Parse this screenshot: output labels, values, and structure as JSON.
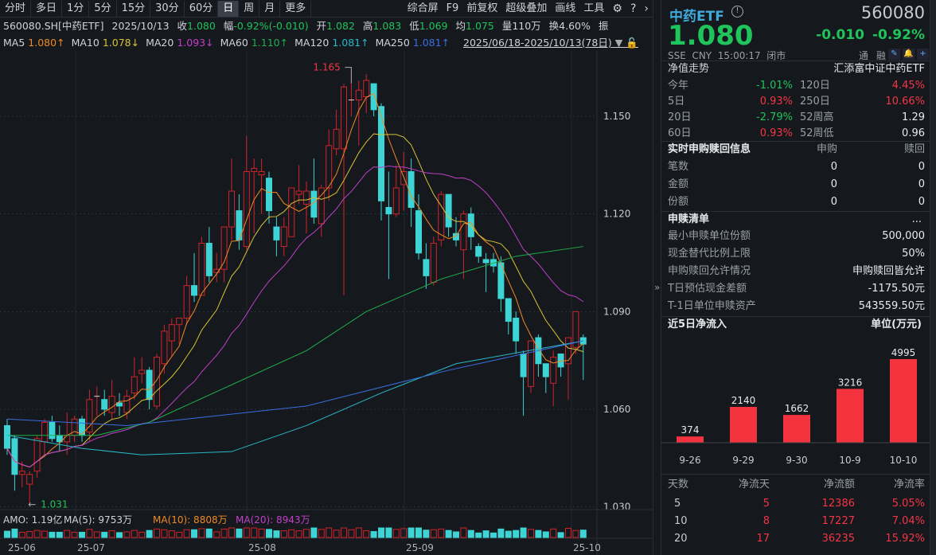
{
  "toolbar": {
    "tabs": [
      "分时",
      "多日",
      "1分",
      "5分",
      "15分",
      "30分",
      "60分",
      "日",
      "周",
      "月",
      "更多"
    ],
    "active": "日",
    "tools": [
      "综合屏",
      "F9",
      "前复权",
      "超级叠加",
      "画线",
      "工具"
    ]
  },
  "quote": {
    "code": "560080.SH[中药ETF]",
    "date": "2025/10/13",
    "close_label": "收",
    "close": "1.080",
    "amp_label": "幅",
    "change": "-0.92%(-0.010)",
    "open_label": "开",
    "open": "1.082",
    "high_label": "高",
    "high": "1.083",
    "low_label": "低",
    "low": "1.069",
    "avg_label": "均",
    "avg": "1.075",
    "vol_label": "量",
    "vol": "110万",
    "turn_label": "换",
    "turn": "4.60%",
    "extra": "振"
  },
  "ma": [
    {
      "label": "MA5",
      "value": "1.080↑",
      "color": "#f08a24"
    },
    {
      "label": "MA10",
      "value": "1.078↓",
      "color": "#d8c234"
    },
    {
      "label": "MA20",
      "value": "1.093↓",
      "color": "#c040c8"
    },
    {
      "label": "MA60",
      "value": "1.110↑",
      "color": "#1fae4a"
    },
    {
      "label": "MA120",
      "value": "1.081↑",
      "color": "#2ab8c8"
    },
    {
      "label": "MA250",
      "value": "1.081↑",
      "color": "#3a6ee0"
    }
  ],
  "range": "2025/06/18-2025/10/13(78日)",
  "chart": {
    "yticks": [
      "1.150",
      "1.120",
      "1.090",
      "1.060",
      "1.030"
    ],
    "xticks": [
      "25-06",
      "25-07",
      "25-08",
      "25-09",
      "25-10"
    ],
    "high_mark": "1.165",
    "low_mark": "1.031",
    "up_color": "#d0242a",
    "down_color": "#3cd4d4",
    "candles": [
      [
        1.055,
        1.057,
        1.046,
        1.048
      ],
      [
        1.051,
        1.052,
        1.035,
        1.04
      ],
      [
        1.04,
        1.044,
        1.036,
        1.041
      ],
      [
        1.037,
        1.041,
        1.031,
        1.04
      ],
      [
        1.041,
        1.052,
        1.039,
        1.051
      ],
      [
        1.05,
        1.057,
        1.046,
        1.056
      ],
      [
        1.056,
        1.058,
        1.05,
        1.051
      ],
      [
        1.052,
        1.055,
        1.047,
        1.05
      ],
      [
        1.05,
        1.059,
        1.046,
        1.052
      ],
      [
        1.052,
        1.058,
        1.05,
        1.057
      ],
      [
        1.057,
        1.058,
        1.05,
        1.052
      ],
      [
        1.053,
        1.066,
        1.05,
        1.063
      ],
      [
        1.064,
        1.067,
        1.058,
        1.064
      ],
      [
        1.063,
        1.066,
        1.058,
        1.06
      ],
      [
        1.059,
        1.069,
        1.057,
        1.064
      ],
      [
        1.062,
        1.065,
        1.058,
        1.061
      ],
      [
        1.059,
        1.066,
        1.057,
        1.064
      ],
      [
        1.065,
        1.076,
        1.063,
        1.07
      ],
      [
        1.071,
        1.076,
        1.068,
        1.072
      ],
      [
        1.072,
        1.073,
        1.06,
        1.063
      ],
      [
        1.061,
        1.077,
        1.06,
        1.076
      ],
      [
        1.074,
        1.086,
        1.071,
        1.084
      ],
      [
        1.081,
        1.088,
        1.076,
        1.086
      ],
      [
        1.086,
        1.088,
        1.08,
        1.088
      ],
      [
        1.088,
        1.101,
        1.086,
        1.098
      ],
      [
        1.098,
        1.108,
        1.093,
        1.095
      ],
      [
        1.095,
        1.113,
        1.095,
        1.111
      ],
      [
        1.111,
        1.116,
        1.099,
        1.101
      ],
      [
        1.102,
        1.108,
        1.099,
        1.103
      ],
      [
        1.103,
        1.116,
        1.099,
        1.116
      ],
      [
        1.116,
        1.137,
        1.112,
        1.127
      ],
      [
        1.121,
        1.126,
        1.109,
        1.112
      ],
      [
        1.11,
        1.144,
        1.109,
        1.133
      ],
      [
        1.133,
        1.137,
        1.114,
        1.134
      ],
      [
        1.132,
        1.137,
        1.12,
        1.133
      ],
      [
        1.131,
        1.133,
        1.117,
        1.121
      ],
      [
        1.116,
        1.119,
        1.107,
        1.112
      ],
      [
        1.11,
        1.119,
        1.107,
        1.116
      ],
      [
        1.113,
        1.128,
        1.113,
        1.128
      ],
      [
        1.126,
        1.135,
        1.123,
        1.127
      ],
      [
        1.123,
        1.13,
        1.114,
        1.127
      ],
      [
        1.127,
        1.137,
        1.117,
        1.119
      ],
      [
        1.117,
        1.129,
        1.113,
        1.128
      ],
      [
        1.128,
        1.146,
        1.124,
        1.141
      ],
      [
        1.14,
        1.152,
        1.138,
        1.146
      ],
      [
        1.14,
        1.16,
        1.095,
        1.159
      ],
      [
        1.155,
        1.165,
        1.15,
        1.155
      ],
      [
        1.155,
        1.161,
        1.141,
        1.158
      ],
      [
        1.156,
        1.163,
        1.151,
        1.161
      ],
      [
        1.16,
        1.16,
        1.15,
        1.152
      ],
      [
        1.153,
        1.154,
        1.118,
        1.124
      ],
      [
        1.122,
        1.133,
        1.1,
        1.12
      ],
      [
        1.12,
        1.135,
        1.119,
        1.128
      ],
      [
        1.129,
        1.139,
        1.121,
        1.133
      ],
      [
        1.133,
        1.137,
        1.116,
        1.122
      ],
      [
        1.121,
        1.126,
        1.106,
        1.108
      ],
      [
        1.106,
        1.111,
        1.097,
        1.101
      ],
      [
        1.099,
        1.113,
        1.098,
        1.111
      ],
      [
        1.112,
        1.127,
        1.11,
        1.126
      ],
      [
        1.126,
        1.126,
        1.113,
        1.116
      ],
      [
        1.114,
        1.119,
        1.11,
        1.112
      ],
      [
        1.109,
        1.121,
        1.1,
        1.12
      ],
      [
        1.12,
        1.122,
        1.109,
        1.113
      ],
      [
        1.11,
        1.111,
        1.105,
        1.107
      ],
      [
        1.106,
        1.108,
        1.096,
        1.105
      ],
      [
        1.106,
        1.108,
        1.102,
        1.104
      ],
      [
        1.105,
        1.107,
        1.09,
        1.094
      ],
      [
        1.094,
        1.094,
        1.083,
        1.087
      ],
      [
        1.088,
        1.09,
        1.077,
        1.081
      ],
      [
        1.077,
        1.078,
        1.058,
        1.07
      ],
      [
        1.067,
        1.081,
        1.065,
        1.081
      ],
      [
        1.082,
        1.083,
        1.07,
        1.074
      ],
      [
        1.074,
        1.074,
        1.065,
        1.07
      ],
      [
        1.068,
        1.078,
        1.061,
        1.076
      ],
      [
        1.077,
        1.077,
        1.07,
        1.073
      ],
      [
        1.074,
        1.082,
        1.063,
        1.082
      ],
      [
        1.079,
        1.09,
        1.077,
        1.09
      ],
      [
        1.082,
        1.083,
        1.069,
        1.08
      ]
    ],
    "ma60_points": [
      [
        0,
        1.052
      ],
      [
        12,
        1.052
      ],
      [
        19,
        1.056
      ],
      [
        40,
        1.078
      ],
      [
        48,
        1.09
      ],
      [
        58,
        1.1
      ],
      [
        68,
        1.107
      ],
      [
        77,
        1.11
      ]
    ],
    "ma120_points": [
      [
        0,
        1.052
      ],
      [
        10,
        1.048
      ],
      [
        18,
        1.046
      ],
      [
        30,
        1.047
      ],
      [
        40,
        1.055
      ],
      [
        50,
        1.065
      ],
      [
        60,
        1.074
      ],
      [
        77,
        1.081
      ]
    ],
    "ma250_points": [
      [
        0,
        1.057
      ],
      [
        16,
        1.055
      ],
      [
        40,
        1.061
      ],
      [
        59,
        1.072
      ],
      [
        77,
        1.081
      ]
    ]
  },
  "amo": {
    "label": "AMO: 1.19亿",
    "ma5": "MA(5): 9753万",
    "ma10": "MA(10): 8808万",
    "ma20": "MA(20): 8943万"
  },
  "panel": {
    "name": "中药ETF",
    "code": "560080",
    "price": "1.080",
    "change": "-0.010",
    "pct": "-0.92%",
    "meta": "SSE  CNY  15:00:17  闭市",
    "flags": [
      "通",
      "融"
    ],
    "nav_title": "净值走势",
    "fund_name": "汇添富中证中药ETF",
    "nav": [
      [
        "今年",
        "-1.01%",
        "g",
        "120日",
        "4.45%",
        "r"
      ],
      [
        "5日",
        "0.93%",
        "r",
        "250日",
        "10.66%",
        "r"
      ],
      [
        "20日",
        "-2.79%",
        "g",
        "52周高",
        "1.29",
        "w"
      ],
      [
        "60日",
        "0.93%",
        "r",
        "52周低",
        "0.96",
        "w"
      ]
    ],
    "rt_title": "实时申购赎回信息",
    "rt_cols": [
      "申购",
      "赎回"
    ],
    "rt": [
      [
        "笔数",
        "0",
        "0"
      ],
      [
        "金额",
        "0",
        "0"
      ],
      [
        "份额",
        "0",
        "0"
      ]
    ],
    "list_title": "申赎清单",
    "list_more": "...",
    "list": [
      [
        "最小申赎单位份额",
        "500,000"
      ],
      [
        "现金替代比例上限",
        "50%"
      ],
      [
        "申购赎回允许情况",
        "申购赎回皆允许"
      ],
      [
        "T日预估现金差额",
        "-1175.50元"
      ],
      [
        "T-1日单位申赎资产",
        "543559.50元"
      ]
    ],
    "flow_title": "近5日净流入",
    "flow_unit": "单位(万元)",
    "flow": {
      "categories": [
        "9-26",
        "9-29",
        "9-30",
        "10-9",
        "10-10"
      ],
      "values": [
        374,
        2140,
        1662,
        3216,
        4995
      ],
      "color": "#f5333f"
    },
    "table_head": [
      "天数",
      "净流天",
      "净流额",
      "净流率"
    ],
    "table": [
      [
        "5",
        "5",
        "12386",
        "5.05%"
      ],
      [
        "10",
        "8",
        "17227",
        "7.04%"
      ],
      [
        "20",
        "17",
        "36235",
        "15.92%"
      ]
    ]
  }
}
